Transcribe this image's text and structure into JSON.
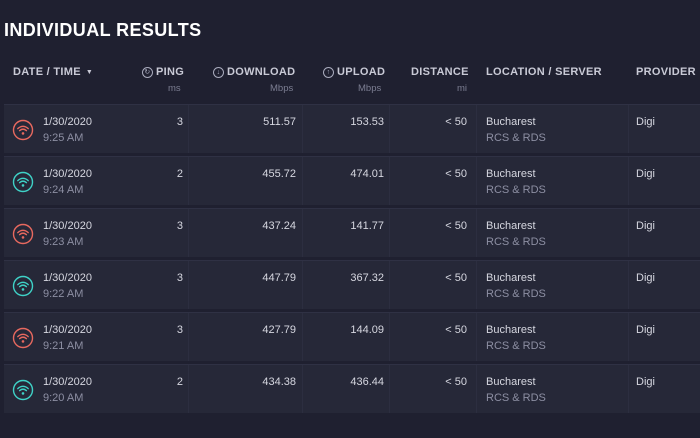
{
  "page_title": "INDIVIDUAL RESULTS",
  "columns": {
    "date": {
      "label": "DATE / TIME",
      "caret": "▼"
    },
    "ping": {
      "label": "PING",
      "unit": "ms",
      "icon": "ping-icon"
    },
    "download": {
      "label": "DOWNLOAD",
      "unit": "Mbps",
      "icon": "download-arrow-icon"
    },
    "upload": {
      "label": "UPLOAD",
      "unit": "Mbps",
      "icon": "upload-arrow-icon"
    },
    "distance": {
      "label": "DISTANCE",
      "unit": "mi"
    },
    "location": {
      "label": "LOCATION / SERVER"
    },
    "provider": {
      "label": "PROVIDER"
    }
  },
  "colors": {
    "wifi_red": "#e8695f",
    "wifi_teal": "#3fd2c7"
  },
  "rows": [
    {
      "date": "1/30/2020",
      "time": "9:25 AM",
      "ping": "3",
      "download": "511.57",
      "upload": "153.53",
      "distance": "< 50",
      "location": "Bucharest",
      "server": "RCS & RDS",
      "provider": "Digi",
      "wifi_color": "#e8695f"
    },
    {
      "date": "1/30/2020",
      "time": "9:24 AM",
      "ping": "2",
      "download": "455.72",
      "upload": "474.01",
      "distance": "< 50",
      "location": "Bucharest",
      "server": "RCS & RDS",
      "provider": "Digi",
      "wifi_color": "#3fd2c7"
    },
    {
      "date": "1/30/2020",
      "time": "9:23 AM",
      "ping": "3",
      "download": "437.24",
      "upload": "141.77",
      "distance": "< 50",
      "location": "Bucharest",
      "server": "RCS & RDS",
      "provider": "Digi",
      "wifi_color": "#e8695f"
    },
    {
      "date": "1/30/2020",
      "time": "9:22 AM",
      "ping": "3",
      "download": "447.79",
      "upload": "367.32",
      "distance": "< 50",
      "location": "Bucharest",
      "server": "RCS & RDS",
      "provider": "Digi",
      "wifi_color": "#3fd2c7"
    },
    {
      "date": "1/30/2020",
      "time": "9:21 AM",
      "ping": "3",
      "download": "427.79",
      "upload": "144.09",
      "distance": "< 50",
      "location": "Bucharest",
      "server": "RCS & RDS",
      "provider": "Digi",
      "wifi_color": "#e8695f"
    },
    {
      "date": "1/30/2020",
      "time": "9:20 AM",
      "ping": "2",
      "download": "434.38",
      "upload": "436.44",
      "distance": "< 50",
      "location": "Bucharest",
      "server": "RCS & RDS",
      "provider": "Digi",
      "wifi_color": "#3fd2c7"
    }
  ]
}
